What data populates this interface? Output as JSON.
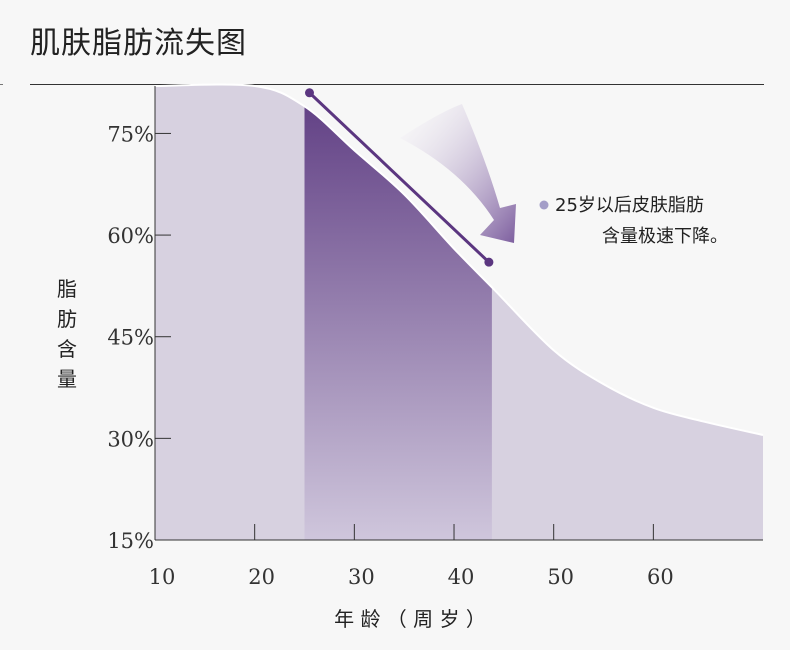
{
  "title": "肌肤脂肪流失图",
  "chart_data": {
    "type": "area",
    "title": "肌肤脂肪流失图",
    "xlabel": "年 龄 （ 周 岁 ）",
    "ylabel": "脂肪含量",
    "ylabel_chars": [
      "脂",
      "肪",
      "含",
      "量"
    ],
    "xlim": [
      10,
      71
    ],
    "ylim": [
      15,
      82
    ],
    "x_ticks": [
      10,
      20,
      30,
      40,
      50,
      60
    ],
    "x_tick_labels": [
      "10",
      "20",
      "30",
      "40",
      "50",
      "60"
    ],
    "y_ticks": [
      15,
      30,
      45,
      60,
      75
    ],
    "y_tick_labels": [
      "15%",
      "30%",
      "45%",
      "60%",
      "75%"
    ],
    "series": [
      {
        "x": [
          10,
          20,
          25,
          30,
          35,
          40,
          44,
          50,
          55,
          60,
          65,
          71
        ],
        "y": [
          82,
          82,
          79,
          72.5,
          66,
          58,
          52,
          43,
          38,
          34.5,
          32.5,
          30.5
        ]
      }
    ],
    "highlight_range": [
      25,
      43.8
    ],
    "trend_line": {
      "x": [
        25.5,
        43.5
      ],
      "y": [
        81,
        56
      ]
    },
    "annotation": [
      "25岁以后皮肤脂肪",
      "含量极速下降。"
    ],
    "colors": {
      "area": "#d7d1e0",
      "highlight_top": "#5e3c82",
      "highlight_bottom": "#cfc6dc",
      "line": "#5b3680",
      "bullet": "#a49ec8",
      "arrow": "#7c5d9e"
    }
  }
}
